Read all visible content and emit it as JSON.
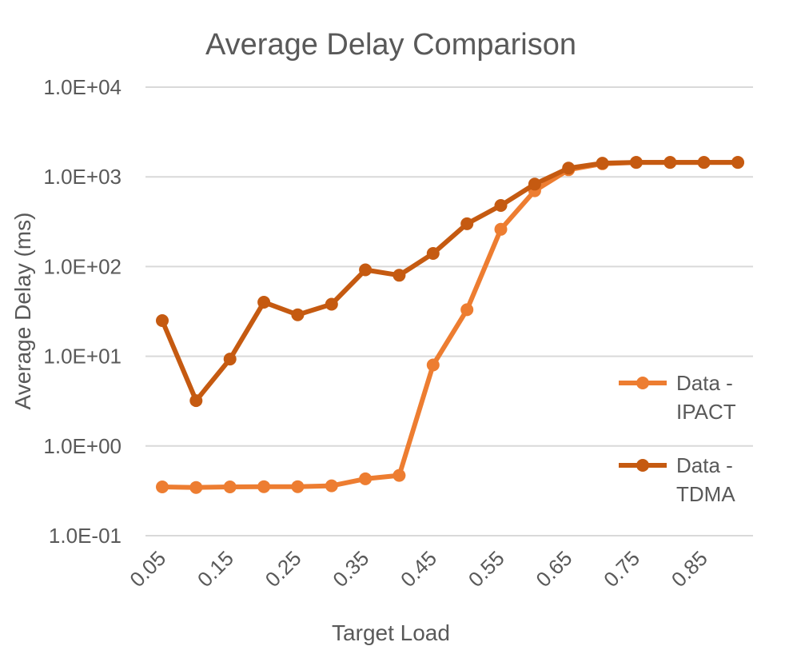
{
  "chart_data": {
    "type": "line",
    "title": "Average Delay Comparison",
    "xlabel": "Target Load",
    "ylabel": "Average Delay (ms)",
    "y_scale": "log",
    "ylim": [
      0.1,
      10000
    ],
    "y_ticks": [
      "1.0E-01",
      "1.0E+00",
      "1.0E+01",
      "1.0E+02",
      "1.0E+03",
      "1.0E+04"
    ],
    "x": [
      0.05,
      0.1,
      0.15,
      0.2,
      0.25,
      0.3,
      0.35,
      0.4,
      0.45,
      0.5,
      0.55,
      0.6,
      0.65,
      0.7,
      0.75,
      0.8,
      0.85,
      0.9
    ],
    "x_tick_labels": [
      "0.05",
      "",
      "0.15",
      "",
      "0.25",
      "",
      "0.35",
      "",
      "0.45",
      "",
      "0.55",
      "",
      "0.65",
      "",
      "0.75",
      "",
      "0.85",
      ""
    ],
    "grid": "horizontal",
    "legend_position": "right",
    "series": [
      {
        "name": "Data - IPACT",
        "color": "#ED7D31",
        "values": [
          0.35,
          0.345,
          0.35,
          0.352,
          0.352,
          0.36,
          0.43,
          0.47,
          8.0,
          33,
          260,
          700,
          1200,
          1400,
          1450,
          1450,
          1450,
          1450
        ]
      },
      {
        "name": "Data - TDMA",
        "color": "#C55A11",
        "values": [
          25,
          3.2,
          9.3,
          40,
          29,
          38,
          92,
          80,
          140,
          300,
          480,
          830,
          1250,
          1420,
          1450,
          1450,
          1450,
          1450
        ]
      }
    ]
  }
}
